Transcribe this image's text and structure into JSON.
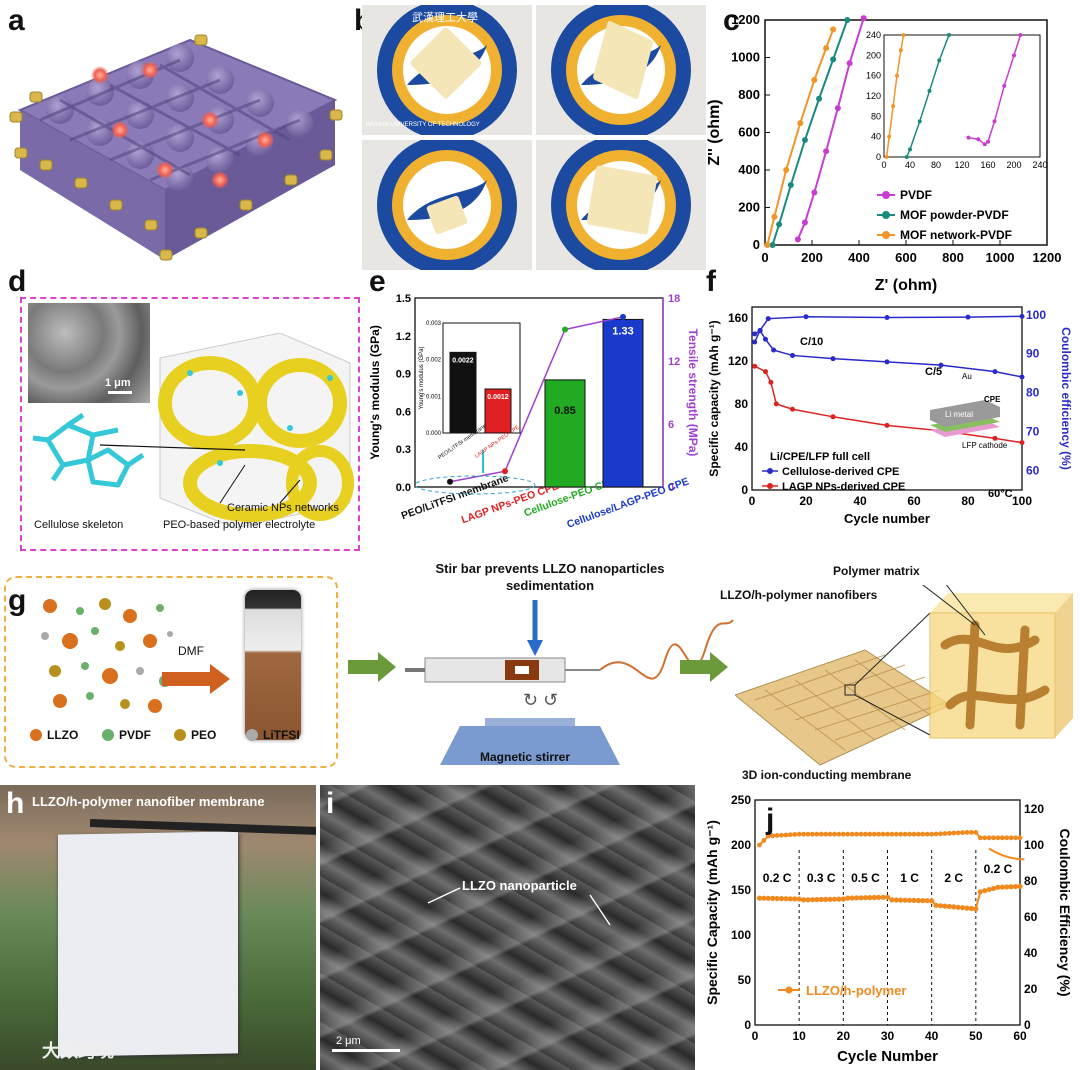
{
  "panels": {
    "a": {
      "label": "a"
    },
    "b": {
      "label": "b",
      "photo_text": "WUHAN UNIVERSITY OF TECHNOLOGY",
      "photo_cn": "武漢理工大學"
    },
    "c": {
      "label": "c"
    },
    "d": {
      "label": "d",
      "scale_bar": "1 μm",
      "annotations": [
        "Cellulose skeleton",
        "PEO-based polymer electrolyte",
        "Ceramic NPs networks"
      ]
    },
    "e": {
      "label": "e"
    },
    "f": {
      "label": "f",
      "inset_labels": {
        "au": "Au",
        "cpe": "CPE",
        "li": "Li metal",
        "lfp": "LFP cathode"
      },
      "arrow_labels": [
        "C/10",
        "C/5"
      ]
    },
    "g": {
      "label": "g",
      "dmf": "DMF",
      "stir_title": "Stir bar prevents LLZO nanoparticles sedimentation",
      "magnetic": "Magnetic stirrer",
      "polymer_matrix": "Polymer matrix",
      "nanofibers": "LLZO/h-polymer nanofibers",
      "membrane": "3D ion-conducting membrane",
      "legend": [
        "LLZO",
        "PVDF",
        "PEO",
        "LiTFSI"
      ]
    },
    "h": {
      "label": "h",
      "caption": "LLZO/h-polymer nanofiber membrane",
      "watermark": "大数跨境"
    },
    "i": {
      "label": "i",
      "annotation": "LLZO nanoparticle",
      "scale_bar": "2 μm"
    },
    "j": {
      "label": "j"
    }
  },
  "chart_data": [
    {
      "id": "c",
      "type": "scatter",
      "xlabel": "Z' (ohm)",
      "ylabel": "Z'' (ohm)",
      "xlim": [
        0,
        1200
      ],
      "ylim": [
        0,
        1200
      ],
      "xticks": [
        0,
        200,
        400,
        600,
        800,
        1000,
        1200
      ],
      "yticks": [
        0,
        200,
        400,
        600,
        800,
        1000,
        1200
      ],
      "series": [
        {
          "name": "PVDF",
          "color": "#c83cd0",
          "x": [
            140,
            170,
            210,
            260,
            310,
            360,
            420
          ],
          "y": [
            30,
            120,
            280,
            500,
            730,
            970,
            1210
          ]
        },
        {
          "name": "MOF powder-PVDF",
          "color": "#1a8a7e",
          "x": [
            32,
            60,
            110,
            170,
            230,
            290,
            350
          ],
          "y": [
            0,
            110,
            320,
            560,
            780,
            990,
            1200
          ]
        },
        {
          "name": "MOF network-PVDF",
          "color": "#f0952a",
          "x": [
            10,
            40,
            90,
            150,
            210,
            260,
            290
          ],
          "y": [
            0,
            150,
            400,
            650,
            880,
            1050,
            1150
          ]
        }
      ],
      "inset": {
        "xlim": [
          0,
          240
        ],
        "ylim": [
          0,
          240
        ],
        "xticks": [
          0,
          40,
          80,
          120,
          160,
          200,
          240
        ],
        "yticks": [
          0,
          20,
          40,
          60,
          80,
          100,
          120,
          140,
          160,
          180,
          200,
          220,
          240
        ],
        "series": [
          {
            "name": "PVDF",
            "x": [
              130,
              145,
              155,
              160,
              170,
              185,
              200,
              210
            ],
            "y": [
              38,
              35,
              25,
              30,
              70,
              140,
              200,
              240
            ]
          },
          {
            "name": "MOF powder-PVDF",
            "x": [
              35,
              40,
              55,
              70,
              85,
              100
            ],
            "y": [
              0,
              15,
              70,
              130,
              190,
              240
            ]
          },
          {
            "name": "MOF network-PVDF",
            "x": [
              4,
              8,
              14,
              20,
              26,
              30
            ],
            "y": [
              0,
              40,
              100,
              160,
              210,
              240
            ]
          }
        ]
      }
    },
    {
      "id": "e",
      "type": "bar",
      "ylabel": "Young's modulus (GPa)",
      "y2label": "Tensile strength (MPa)",
      "ylim": [
        0,
        1.5
      ],
      "y2lim": [
        0,
        18
      ],
      "yticks": [
        0.0,
        0.3,
        0.6,
        0.9,
        1.2,
        1.5
      ],
      "y2ticks": [
        0,
        6,
        12,
        18
      ],
      "categories": [
        "PEO/LiTFSI membrane",
        "LAGP NPs-PEO CPE",
        "Cellulose-PEO CPE",
        "Cellulose/LAGP-PEO CPE"
      ],
      "category_colors": [
        "#111111",
        "#e02020",
        "#22aa22",
        "#1a3acc"
      ],
      "values": [
        0.0022,
        0.0012,
        0.85,
        1.33
      ],
      "bar_labels": [
        "",
        "",
        "0.85",
        "1.33"
      ],
      "tensile": [
        0.5,
        1.5,
        15.0,
        16.2
      ],
      "inset": {
        "ylabel": "Young's modulus (GPa)",
        "ylim": [
          0,
          0.003
        ],
        "yticks": [
          "0.000",
          "0.001",
          "0.002",
          "0.003"
        ],
        "categories": [
          "PEO/LiTFSI membrane",
          "LAGP NPs-PEO CPE"
        ],
        "values": [
          0.0022,
          0.0012
        ],
        "bar_labels": [
          "0.0022",
          "0.0012"
        ]
      }
    },
    {
      "id": "f",
      "type": "line",
      "title": "Li/CPE/LFP full cell",
      "xlabel": "Cycle number",
      "ylabel": "Specific capacity (mAh g⁻¹)",
      "y2label": "Coulombic efficiency (%)",
      "xlim": [
        0,
        100
      ],
      "ylim": [
        0,
        170
      ],
      "y2lim": [
        55,
        102
      ],
      "xticks": [
        0,
        20,
        40,
        60,
        80,
        100
      ],
      "yticks": [
        0,
        40,
        80,
        120,
        160
      ],
      "y2ticks": [
        60,
        70,
        80,
        90,
        100
      ],
      "temperature": "60°C",
      "series": [
        {
          "name": "Cellulose-derived CPE",
          "color": "#2a2acc",
          "capacity": [
            [
              1,
              145
            ],
            [
              3,
              148
            ],
            [
              5,
              140
            ],
            [
              8,
              130
            ],
            [
              15,
              125
            ],
            [
              30,
              122
            ],
            [
              50,
              119
            ],
            [
              70,
              116
            ],
            [
              90,
              110
            ],
            [
              100,
              105
            ]
          ],
          "efficiency": [
            [
              1,
              93
            ],
            [
              3,
              96
            ],
            [
              6,
              99
            ],
            [
              20,
              99.5
            ],
            [
              50,
              99.3
            ],
            [
              80,
              99.4
            ],
            [
              100,
              99.6
            ]
          ]
        },
        {
          "name": "LAGP NPs-derived CPE",
          "color": "#dd2222",
          "capacity": [
            [
              1,
              115
            ],
            [
              5,
              110
            ],
            [
              7,
              100
            ],
            [
              9,
              80
            ],
            [
              15,
              75
            ],
            [
              30,
              68
            ],
            [
              50,
              60
            ],
            [
              70,
              55
            ],
            [
              90,
              48
            ],
            [
              100,
              44
            ]
          ],
          "efficiency": [
            [
              1,
              95
            ],
            [
              5,
              98
            ],
            [
              10,
              99
            ],
            [
              50,
              99.2
            ],
            [
              100,
              99.4
            ]
          ]
        }
      ]
    },
    {
      "id": "j",
      "type": "line",
      "xlabel": "Cycle Number",
      "ylabel": "Specific Capacity (mAh g⁻¹)",
      "y2label": "Coulombic Efficiency (%)",
      "xlim": [
        0,
        60
      ],
      "ylim": [
        0,
        250
      ],
      "y2lim": [
        0,
        125
      ],
      "xticks": [
        0,
        10,
        20,
        30,
        40,
        50,
        60
      ],
      "yticks": [
        0,
        50,
        100,
        150,
        200,
        250
      ],
      "y2ticks": [
        0,
        20,
        40,
        60,
        80,
        100,
        120
      ],
      "rate_labels": [
        "0.2 C",
        "0.3 C",
        "0.5 C",
        "1 C",
        "2 C",
        "0.2 C"
      ],
      "series": [
        {
          "name": "LLZO/h-polymer",
          "color": "#f08a1e",
          "capacity": [
            [
              1,
              141
            ],
            [
              10,
              140
            ],
            [
              11,
              139
            ],
            [
              20,
              140
            ],
            [
              21,
              141
            ],
            [
              30,
              142
            ],
            [
              31,
              139
            ],
            [
              40,
              138
            ],
            [
              41,
              133
            ],
            [
              50,
              129
            ],
            [
              51,
              148
            ],
            [
              55,
              153
            ],
            [
              60,
              154
            ]
          ],
          "efficiency": [
            [
              1,
              100
            ],
            [
              3,
              105
            ],
            [
              10,
              106
            ],
            [
              20,
              106
            ],
            [
              30,
              106
            ],
            [
              40,
              106
            ],
            [
              48,
              107
            ],
            [
              50,
              107
            ],
            [
              51,
              104
            ],
            [
              52,
              104
            ],
            [
              60,
              104
            ]
          ]
        }
      ]
    }
  ]
}
